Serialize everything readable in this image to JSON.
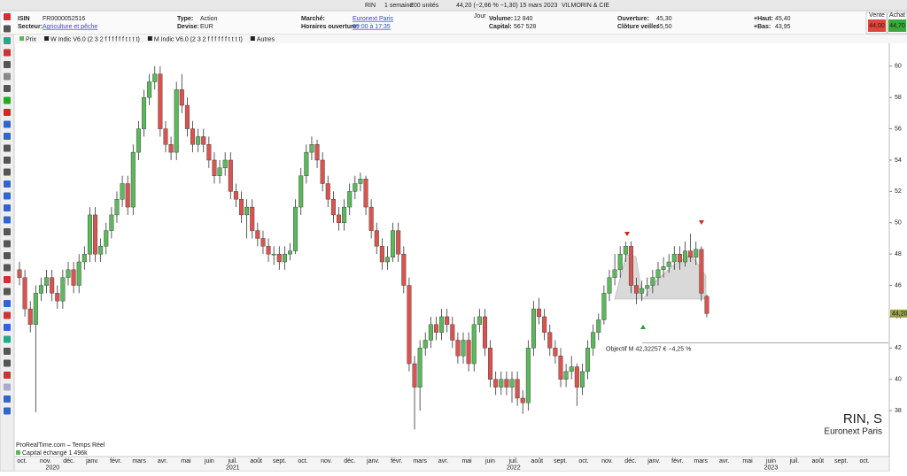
{
  "toolbar": {
    "symbol": "RIN",
    "period": "1 semaine",
    "units": "200 unités",
    "quote": "44,20 (−2,86 % −1,30) 15 mars 2023",
    "name": "VILMORIN & CIE"
  },
  "info": {
    "columns": [
      [
        {
          "label": "ISIN",
          "value": "FR0000052516"
        },
        {
          "label": "Secteur:",
          "value": "Agriculture et pêche"
        }
      ],
      [
        {
          "label": "Type:",
          "value": "Action"
        },
        {
          "label": "Devise:",
          "value": "EUR"
        }
      ],
      [
        {
          "label": "Marché:",
          "value": "Euronext Paris"
        },
        {
          "label": "Horaires ouverture:",
          "value": "09:00 à 17:35"
        }
      ],
      [
        {
          "label": "Volume:",
          "value": "12 840"
        },
        {
          "label": "Capital:",
          "value": "567 528"
        }
      ],
      [
        {
          "label": "Ouverture:",
          "value": "45,30"
        },
        {
          "label": "Clôture veille:",
          "value": "45,50"
        }
      ],
      [
        {
          "label": "+Haut:",
          "value": "45,40"
        },
        {
          "label": "+Bas:",
          "value": "43,95"
        }
      ]
    ],
    "period_tab": "Jour",
    "bid": {
      "label": "Vente",
      "value": "44,00"
    },
    "ask": {
      "label": "Achat",
      "value": "44,70"
    }
  },
  "legend": [
    "Prix",
    "W Indic V6.0 (2 3 2 f f f f f f t t t t)",
    "M Indic V6.0 (2 3 2 f f f f f f t t t t)",
    "Autres"
  ],
  "chart_data": {
    "type": "candlestick",
    "up_color": "#5cb85c",
    "down_color": "#d9534f",
    "ylim": [
      36.2,
      61.4
    ],
    "yticks": [
      38,
      40,
      42,
      44,
      46,
      48,
      50,
      52,
      54,
      56,
      58,
      60
    ],
    "candles": [
      [
        47,
        47.5,
        46,
        46.5
      ],
      [
        46.5,
        47,
        44,
        44.5
      ],
      [
        44.5,
        45,
        43,
        43.5
      ],
      [
        43.5,
        46,
        37.9,
        45.5
      ],
      [
        45.5,
        46.5,
        45,
        46
      ],
      [
        46,
        47,
        45.5,
        46.5
      ],
      [
        46.5,
        47,
        45,
        45.5
      ],
      [
        45.5,
        46,
        44.5,
        45
      ],
      [
        45,
        47,
        44.5,
        46.5
      ],
      [
        46.5,
        47.5,
        46,
        47
      ],
      [
        47,
        47.5,
        45.5,
        46
      ],
      [
        46,
        48,
        45.5,
        47.5
      ],
      [
        47.5,
        48.5,
        47,
        48
      ],
      [
        48,
        51,
        47.5,
        50.5
      ],
      [
        50.5,
        51,
        47.5,
        48
      ],
      [
        48,
        49,
        47.5,
        48.5
      ],
      [
        48.5,
        50,
        48,
        49.5
      ],
      [
        49.5,
        51,
        49,
        50.5
      ],
      [
        50.5,
        52,
        50,
        51.5
      ],
      [
        51.5,
        53,
        51,
        52.5
      ],
      [
        52.5,
        53,
        50.5,
        51
      ],
      [
        51,
        55,
        50.5,
        54.5
      ],
      [
        54.5,
        56.5,
        54,
        56
      ],
      [
        56,
        58.5,
        55.5,
        58
      ],
      [
        58,
        59.5,
        57.5,
        59
      ],
      [
        59,
        60,
        58.5,
        59.5
      ],
      [
        59.5,
        60,
        55.5,
        56
      ],
      [
        56,
        56.5,
        54.5,
        55
      ],
      [
        55,
        55.5,
        54,
        54.5
      ],
      [
        54.5,
        59,
        54,
        58.5
      ],
      [
        58.5,
        59.5,
        57,
        57.5
      ],
      [
        57.5,
        58,
        55.5,
        56
      ],
      [
        56,
        56.5,
        54.5,
        55
      ],
      [
        55,
        56,
        54.5,
        55.5
      ],
      [
        55.5,
        56,
        54.5,
        55
      ],
      [
        55,
        55.5,
        53.5,
        54
      ],
      [
        54,
        54.5,
        52.5,
        53
      ],
      [
        53,
        54,
        52.5,
        53.5
      ],
      [
        53.5,
        54.5,
        53,
        54
      ],
      [
        54,
        54.5,
        51.5,
        52
      ],
      [
        52,
        52.5,
        51,
        51.5
      ],
      [
        51.5,
        52,
        50,
        50.5
      ],
      [
        50.5,
        51.5,
        49,
        51
      ],
      [
        51,
        51.5,
        49,
        49.5
      ],
      [
        49.5,
        50,
        48.5,
        49
      ],
      [
        49,
        49.5,
        48,
        48.5
      ],
      [
        48.5,
        49,
        47.5,
        48
      ],
      [
        48,
        48.5,
        47.3,
        48
      ],
      [
        48,
        48.5,
        47,
        47.5
      ],
      [
        47.5,
        48.5,
        47,
        48
      ],
      [
        48,
        48.7,
        47.6,
        48.2
      ],
      [
        48.2,
        51.5,
        48,
        51
      ],
      [
        51,
        53.5,
        50.5,
        53
      ],
      [
        53,
        55,
        52.5,
        54.5
      ],
      [
        54.5,
        55.5,
        54,
        55
      ],
      [
        55,
        55.3,
        53.5,
        54
      ],
      [
        54,
        54.5,
        52,
        52.5
      ],
      [
        52.5,
        53,
        51,
        51.5
      ],
      [
        51.5,
        52,
        50,
        50.5
      ],
      [
        50.5,
        51,
        49.5,
        50
      ],
      [
        50,
        51.5,
        49.5,
        51
      ],
      [
        51,
        52.5,
        50.5,
        52
      ],
      [
        52,
        53,
        51.5,
        52.5
      ],
      [
        52.5,
        53.2,
        52,
        52.8
      ],
      [
        52.8,
        53,
        50.5,
        51
      ],
      [
        51,
        51.5,
        49,
        49.5
      ],
      [
        49.5,
        50,
        48,
        48.5
      ],
      [
        48.5,
        49,
        47,
        47.5
      ],
      [
        47.5,
        48.5,
        47,
        47.8
      ],
      [
        47.8,
        50,
        47.5,
        49.5
      ],
      [
        49.5,
        50,
        47.5,
        48
      ],
      [
        48,
        48.5,
        45.5,
        46
      ],
      [
        46,
        46.5,
        40.5,
        41
      ],
      [
        41,
        41.5,
        36.8,
        39.5
      ],
      [
        39.5,
        42.5,
        38,
        42
      ],
      [
        42,
        43,
        41.5,
        42.5
      ],
      [
        42.5,
        44,
        42,
        43.5
      ],
      [
        43.5,
        44,
        42.5,
        43
      ],
      [
        43,
        44.5,
        42.5,
        44
      ],
      [
        44,
        44.5,
        43,
        43.5
      ],
      [
        43.5,
        44,
        42,
        42.5
      ],
      [
        42.5,
        43,
        41,
        41.5
      ],
      [
        41.5,
        43,
        41,
        42.5
      ],
      [
        42.5,
        43,
        40.5,
        41
      ],
      [
        41,
        44,
        40.5,
        43.5
      ],
      [
        43.5,
        44.5,
        43,
        44
      ],
      [
        44,
        44.5,
        41.5,
        42
      ],
      [
        42,
        42.5,
        39.5,
        40
      ],
      [
        40,
        40.5,
        39,
        39.5
      ],
      [
        39.5,
        40.5,
        39,
        40
      ],
      [
        40,
        40.5,
        39,
        39.5
      ],
      [
        39.5,
        40.5,
        38.5,
        40
      ],
      [
        40,
        40.5,
        38.3,
        38.8
      ],
      [
        38.8,
        39.3,
        37.8,
        38.5
      ],
      [
        38.5,
        42.5,
        38,
        42
      ],
      [
        42,
        45,
        41.5,
        44.5
      ],
      [
        44.5,
        45.2,
        43.5,
        44
      ],
      [
        44,
        44.5,
        42.5,
        43
      ],
      [
        43,
        43.5,
        41.5,
        42
      ],
      [
        42,
        42.5,
        41,
        41.5
      ],
      [
        41.5,
        42,
        39.5,
        40
      ],
      [
        40,
        41,
        39.5,
        40.5
      ],
      [
        40.5,
        41.5,
        40,
        40.8
      ],
      [
        40.8,
        41,
        38.3,
        39.5
      ],
      [
        39.5,
        41,
        39,
        40.5
      ],
      [
        40.5,
        42.5,
        40,
        42
      ],
      [
        42,
        43.5,
        41.5,
        43
      ],
      [
        43,
        44.2,
        42.5,
        43.8
      ],
      [
        43.8,
        46,
        43.5,
        45.5
      ],
      [
        45.5,
        47,
        45,
        46.5
      ],
      [
        46.5,
        48,
        46,
        47
      ],
      [
        47,
        48.5,
        46.5,
        48
      ],
      [
        48,
        48.8,
        47.5,
        48.5
      ],
      [
        48.5,
        48.8,
        45.5,
        46
      ],
      [
        46,
        46.5,
        44.8,
        45.5
      ],
      [
        45.5,
        46.3,
        45,
        45.8
      ],
      [
        45.8,
        46.5,
        45.3,
        46
      ],
      [
        46,
        47,
        45.5,
        46.5
      ],
      [
        46.5,
        47.5,
        46,
        47
      ],
      [
        47,
        47.8,
        46.5,
        47.2
      ],
      [
        47.2,
        48,
        46.8,
        47.5
      ],
      [
        47.5,
        48.5,
        47,
        48
      ],
      [
        48,
        48.5,
        47,
        47.5
      ],
      [
        47.5,
        48.8,
        47.2,
        48.2
      ],
      [
        48.2,
        49.3,
        47.5,
        47.8
      ],
      [
        47.8,
        48.8,
        47.3,
        48.3
      ],
      [
        48.3,
        48.5,
        45,
        45.5
      ],
      [
        45.3,
        45.4,
        43.95,
        44.2
      ]
    ],
    "x_labels": [
      "oct.",
      "nov.",
      "déc.",
      "janv.",
      "févr.",
      "mars",
      "avr.",
      "mai",
      "juin",
      "juil.",
      "août",
      "sept.",
      "oct.",
      "nov.",
      "déc.",
      "janv.",
      "févr.",
      "mars",
      "avr.",
      "mai",
      "juin",
      "juil.",
      "août",
      "sept.",
      "oct.",
      "nov.",
      "déc.",
      "janv.",
      "févr.",
      "mars",
      "avr.",
      "mai",
      "juin",
      "juil.",
      "août",
      "sept.",
      "oct."
    ],
    "years": [
      "2020",
      "2021",
      "2022",
      "2023"
    ],
    "last_price_label": "44,20",
    "objective_value": 42.32257,
    "objective_label": "Objectif M 42,32257 € −4,25 %",
    "watermark_symbol": "RIN, S",
    "watermark_market": "Euronext Paris",
    "footer": "ProRealTime.com – Temps Réel",
    "volume_label": "Capital échangé",
    "volume_value": "1 496k"
  }
}
